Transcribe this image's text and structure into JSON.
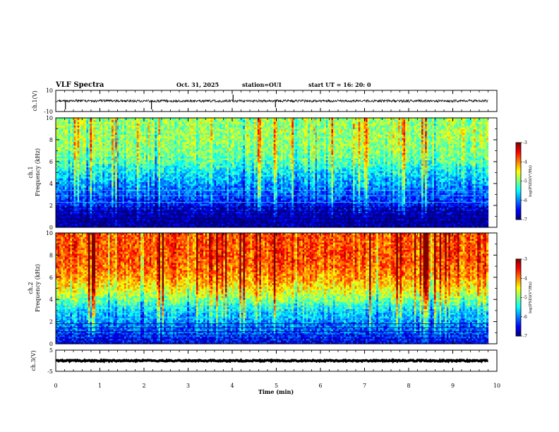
{
  "header": {
    "title": "VLF Spectra",
    "date": "Oct. 31, 2025",
    "station": "station=OUI",
    "start": "start UT =  16: 20: 0"
  },
  "chart_data": [
    {
      "type": "line",
      "name": "ch1-waveform",
      "ylabel": "ch.1(V)",
      "xlim": [
        0,
        10
      ],
      "ylim": [
        -10,
        10
      ],
      "yticks": [
        "10",
        "-10"
      ],
      "baseline": 0,
      "noise_amplitude": 1.2,
      "duration_min": 9.8,
      "spikes": [
        {
          "x": 0.22,
          "y": -8
        },
        {
          "x": 2.17,
          "y": -8
        },
        {
          "x": 4.02,
          "y": 6
        },
        {
          "x": 4.98,
          "y": -6
        }
      ],
      "color": "#000000"
    },
    {
      "type": "heatmap",
      "name": "ch1-spectrogram",
      "ylabel": "ch.1\nFrequency (kHz)",
      "xlim": [
        0,
        10
      ],
      "ylim": [
        0,
        10
      ],
      "yticks": [
        "0",
        "2",
        "4",
        "6",
        "8",
        "10"
      ],
      "duration_min": 9.8,
      "colorbar": {
        "label": "log(PSD)(V²/Hz)",
        "range": [
          -7,
          -3
        ],
        "ticks": [
          "-3",
          "-4",
          "-5",
          "-6",
          "-7"
        ]
      },
      "level_profile": [
        {
          "f": 0.0,
          "v": -6.8
        },
        {
          "f": 0.5,
          "v": -6.9
        },
        {
          "f": 1.0,
          "v": -6.9
        },
        {
          "f": 2.0,
          "v": -6.5
        },
        {
          "f": 3.0,
          "v": -6.2
        },
        {
          "f": 4.0,
          "v": -5.9
        },
        {
          "f": 5.0,
          "v": -5.6
        },
        {
          "f": 6.0,
          "v": -5.2
        },
        {
          "f": 7.0,
          "v": -5.0
        },
        {
          "f": 8.0,
          "v": -4.9
        },
        {
          "f": 10.0,
          "v": -4.9
        }
      ]
    },
    {
      "type": "heatmap",
      "name": "ch2-spectrogram",
      "ylabel": "ch.2\nFrequency (kHz)",
      "xlim": [
        0,
        10
      ],
      "ylim": [
        0,
        10
      ],
      "yticks": [
        "0",
        "2",
        "4",
        "6",
        "8",
        "10"
      ],
      "duration_min": 9.8,
      "colorbar": {
        "label": "log(PSD)(V²/Hz)",
        "range": [
          -7,
          -3
        ],
        "ticks": [
          "-3",
          "-4",
          "-5",
          "-6",
          "-7"
        ]
      },
      "level_profile": [
        {
          "f": 0.0,
          "v": -6.6
        },
        {
          "f": 1.0,
          "v": -6.2
        },
        {
          "f": 2.0,
          "v": -5.9
        },
        {
          "f": 3.0,
          "v": -5.6
        },
        {
          "f": 4.0,
          "v": -5.0
        },
        {
          "f": 5.0,
          "v": -4.5
        },
        {
          "f": 6.0,
          "v": -4.1
        },
        {
          "f": 7.0,
          "v": -3.9
        },
        {
          "f": 8.0,
          "v": -3.8
        },
        {
          "f": 10.0,
          "v": -3.8
        }
      ]
    },
    {
      "type": "line",
      "name": "ch3-waveform",
      "ylabel": "ch.3(V)",
      "xlabel": "Time (min)",
      "xlim": [
        0,
        10
      ],
      "ylim": [
        -5,
        5
      ],
      "yticks": [
        "5",
        "-5"
      ],
      "xticks": [
        "0",
        "1",
        "2",
        "3",
        "4",
        "5",
        "6",
        "7",
        "8",
        "9",
        "10"
      ],
      "baseline": 0,
      "noise_amplitude": 0.3,
      "duration_min": 9.8,
      "color": "#000000"
    }
  ]
}
